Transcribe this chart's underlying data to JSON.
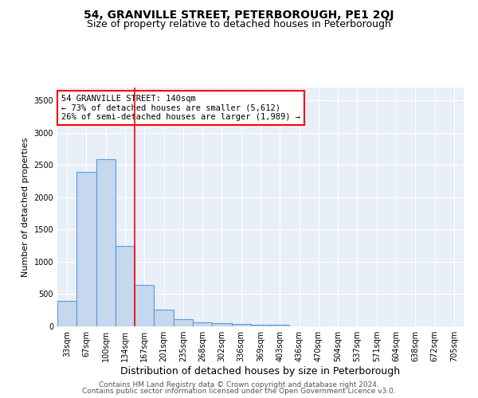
{
  "title": "54, GRANVILLE STREET, PETERBOROUGH, PE1 2QJ",
  "subtitle": "Size of property relative to detached houses in Peterborough",
  "xlabel": "Distribution of detached houses by size in Peterborough",
  "ylabel": "Number of detached properties",
  "categories": [
    "33sqm",
    "67sqm",
    "100sqm",
    "134sqm",
    "167sqm",
    "201sqm",
    "235sqm",
    "268sqm",
    "302sqm",
    "336sqm",
    "369sqm",
    "403sqm",
    "436sqm",
    "470sqm",
    "504sqm",
    "537sqm",
    "571sqm",
    "604sqm",
    "638sqm",
    "672sqm",
    "705sqm"
  ],
  "values": [
    390,
    2390,
    2590,
    1250,
    640,
    255,
    110,
    60,
    55,
    40,
    30,
    30,
    0,
    0,
    0,
    0,
    0,
    0,
    0,
    0,
    0
  ],
  "bar_color": "#c5d8ed",
  "bar_edge_color": "#5b9bd5",
  "bar_edge_width": 0.8,
  "vline_x": 3.5,
  "vline_color": "red",
  "vline_linewidth": 1.2,
  "annotation_text": "54 GRANVILLE STREET: 140sqm\n← 73% of detached houses are smaller (5,612)\n26% of semi-detached houses are larger (1,989) →",
  "annotation_box_color": "white",
  "annotation_box_edge": "red",
  "ylim": [
    0,
    3700
  ],
  "yticks": [
    0,
    500,
    1000,
    1500,
    2000,
    2500,
    3000,
    3500
  ],
  "background_color": "#e8eff8",
  "grid_color": "white",
  "footer_line1": "Contains HM Land Registry data © Crown copyright and database right 2024.",
  "footer_line2": "Contains public sector information licensed under the Open Government Licence v3.0.",
  "title_fontsize": 10,
  "subtitle_fontsize": 9,
  "xlabel_fontsize": 9,
  "ylabel_fontsize": 8,
  "tick_fontsize": 7,
  "annotation_fontsize": 7.5,
  "footer_fontsize": 6.5
}
